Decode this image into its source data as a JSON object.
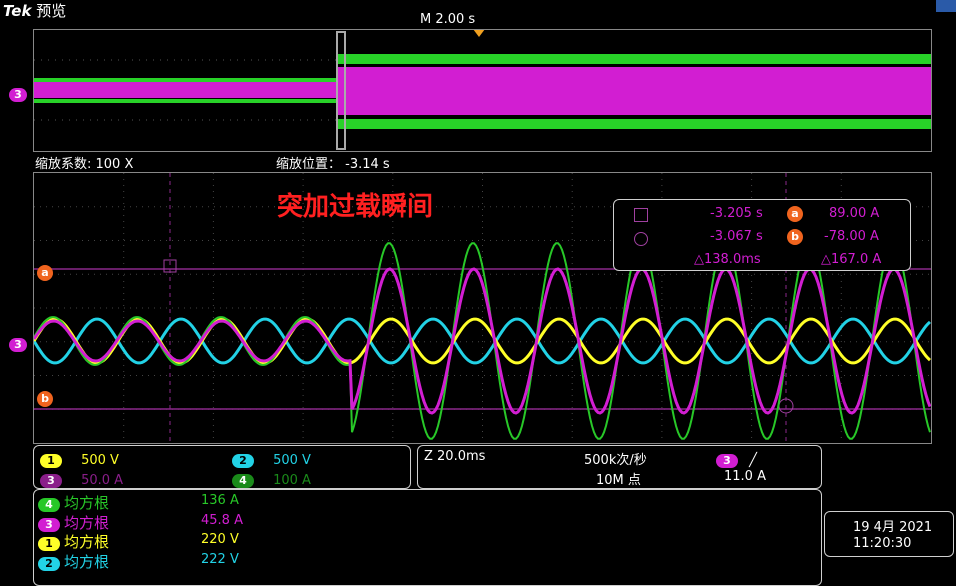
{
  "brand": "Tek",
  "mode": "预览",
  "timebase": "M 2.00 s",
  "zoom_factor": "缩放系数: 100 X",
  "zoom_position": "缩放位置： -3.14 s",
  "annotation": "突加过载瞬间",
  "ch_marker": "3",
  "markers": {
    "a": "a",
    "b": "b"
  },
  "cursor": {
    "t1": "-3.205 s",
    "t2": "-3.067 s",
    "dt": "△138.0ms",
    "va": "89.00 A",
    "vb": "-78.00 A",
    "dv": "△167.0 A"
  },
  "channels": [
    {
      "n": "1",
      "scale": "500 V",
      "color": "#ffff28"
    },
    {
      "n": "2",
      "scale": "500 V",
      "color": "#22d2e6"
    },
    {
      "n": "3",
      "scale": "50.0 A",
      "color": "#d21ed2"
    },
    {
      "n": "4",
      "scale": "100 A",
      "color": "#28c828"
    }
  ],
  "horizontal": {
    "scale": "Z 20.0ms",
    "rate": "500k次/秒",
    "record": "10M 点"
  },
  "trigger": {
    "ch": "3",
    "slope": "╱",
    "level": "11.0 A"
  },
  "measurements": [
    {
      "ch": "4",
      "label": "均方根",
      "value": "136 A",
      "color": "#28c828"
    },
    {
      "ch": "3",
      "label": "均方根",
      "value": "45.8 A",
      "color": "#d21ed2"
    },
    {
      "ch": "1",
      "label": "均方根",
      "value": "220 V",
      "color": "#ffff28"
    },
    {
      "ch": "2",
      "label": "均方根",
      "value": "222 V",
      "color": "#22d2e6"
    }
  ],
  "datetime": {
    "date": "19 4月 2021",
    "time": "11:20:30"
  }
}
